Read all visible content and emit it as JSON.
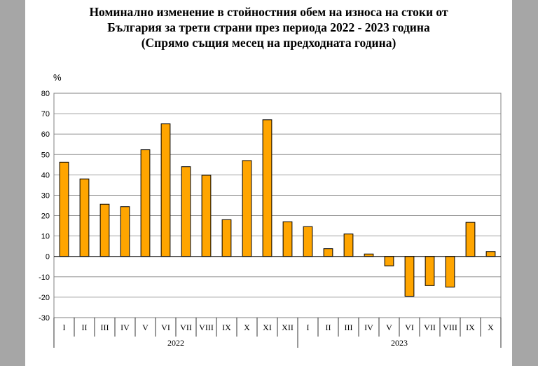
{
  "chart_data": {
    "type": "bar",
    "title_lines": [
      "Номинално изменение в стойностния обем на износа на стоки от",
      "България за трети страни през периода 2022 - 2023 година",
      "(Спрямо същия месец на предходната година)"
    ],
    "ylabel": "%",
    "ylim": [
      -30,
      80
    ],
    "yticks": [
      80,
      70,
      60,
      50,
      40,
      30,
      20,
      10,
      0,
      -10,
      -20,
      -30
    ],
    "categories": [
      "I",
      "II",
      "III",
      "IV",
      "V",
      "VI",
      "VII",
      "VIII",
      "IX",
      "X",
      "XI",
      "XII",
      "I",
      "II",
      "III",
      "IV",
      "V",
      "VI",
      "VII",
      "VIII",
      "IX",
      "X"
    ],
    "values": [
      46.2,
      38.0,
      25.6,
      24.4,
      52.3,
      65.0,
      44.0,
      39.8,
      18.0,
      47.0,
      67.0,
      17.0,
      14.6,
      3.8,
      11.0,
      1.2,
      -4.6,
      -19.5,
      -14.3,
      -15.0,
      16.7,
      2.4
    ],
    "groups": [
      {
        "label": "2022",
        "count": 12
      },
      {
        "label": "2023",
        "count": 10
      }
    ],
    "bar_color": "#ffa500",
    "grid": true
  }
}
